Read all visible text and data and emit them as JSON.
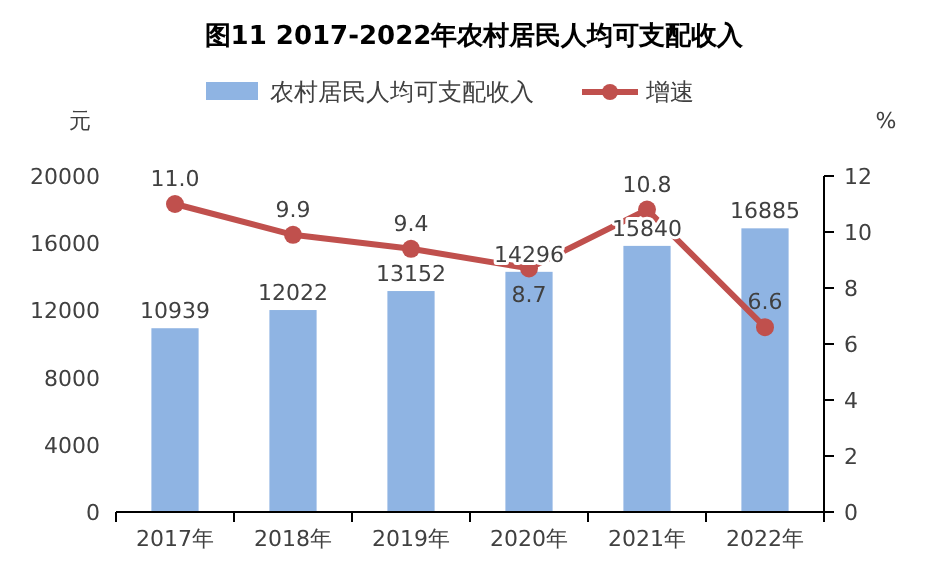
{
  "chart_data": {
    "type": "bar",
    "title": "图11  2017-2022年农村居民人均可支配收入",
    "ylabel": "元",
    "y2label": "%",
    "categories": [
      "2017年",
      "2018年",
      "2019年",
      "2020年",
      "2021年",
      "2022年"
    ],
    "series": [
      {
        "name": "农村居民人均可支配收入",
        "color": "#8fb4e3",
        "values": [
          10939,
          12022,
          13152,
          14296,
          15840,
          16885
        ]
      },
      {
        "name": "增速",
        "type": "line",
        "axis": "y2",
        "color": "#c0504d",
        "marker": "circle",
        "values": [
          11.0,
          9.9,
          9.4,
          8.7,
          10.8,
          6.6
        ],
        "value_labels": [
          "11.0",
          "9.9",
          "9.4",
          "8.7",
          "10.8",
          "6.6"
        ]
      }
    ],
    "ylim": [
      0,
      20000
    ],
    "yticks": [
      0,
      4000,
      8000,
      12000,
      16000,
      20000
    ],
    "y2lim": [
      0,
      12
    ],
    "y2ticks": [
      0,
      2,
      4,
      6,
      8,
      10,
      12
    ],
    "data_labels": true,
    "legend": "top",
    "grid": false
  }
}
